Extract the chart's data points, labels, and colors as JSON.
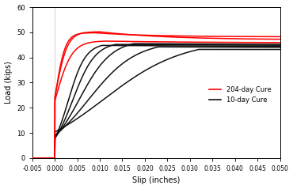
{
  "xlabel": "Slip (inches)",
  "ylabel": "Load (kips)",
  "xlim": [
    -0.005,
    0.05
  ],
  "ylim": [
    0,
    60
  ],
  "xticks": [
    -0.005,
    0.0,
    0.005,
    0.01,
    0.015,
    0.02,
    0.025,
    0.03,
    0.035,
    0.04,
    0.045,
    0.05
  ],
  "yticks": [
    0,
    10,
    20,
    30,
    40,
    50,
    60
  ],
  "legend_red": "204-day Cure",
  "legend_black": "10-day Cure",
  "red_color": "#FF0000",
  "black_color": "#111111",
  "red_curves": [
    {
      "x0": 0.0001,
      "k": 900,
      "peak_x": 0.009,
      "peak_y": 49.8,
      "plateau": 48.2,
      "post_k": 80
    },
    {
      "x0": 0.0001,
      "k": 750,
      "peak_x": 0.01,
      "peak_y": 50.2,
      "plateau": 47.0,
      "post_k": 65
    },
    {
      "x0": 0.0001,
      "k": 550,
      "peak_x": 0.0115,
      "peak_y": 46.5,
      "plateau": 45.8,
      "post_k": 45
    }
  ],
  "black_curves": [
    {
      "inflect_x": 0.003,
      "peak_x": 0.0105,
      "peak_y": 44.8,
      "plateau": 44.2,
      "steepness": 520,
      "post_k": 22
    },
    {
      "inflect_x": 0.004,
      "peak_x": 0.0135,
      "peak_y": 45.2,
      "plateau": 44.5,
      "steepness": 400,
      "post_k": 18
    },
    {
      "inflect_x": 0.0055,
      "peak_x": 0.0175,
      "peak_y": 45.5,
      "plateau": 44.8,
      "steepness": 280,
      "post_k": 14
    },
    {
      "inflect_x": 0.0075,
      "peak_x": 0.023,
      "peak_y": 44.2,
      "plateau": 43.5,
      "steepness": 190,
      "post_k": 10
    },
    {
      "inflect_x": 0.011,
      "peak_x": 0.032,
      "peak_y": 43.2,
      "plateau": 43.0,
      "steepness": 115,
      "post_k": 6
    }
  ]
}
